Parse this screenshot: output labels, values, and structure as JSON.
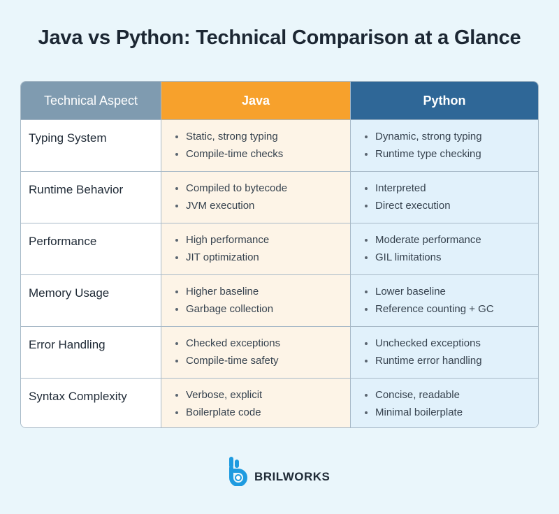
{
  "title": "Java vs Python: Technical Comparison at a Glance",
  "table": {
    "headers": [
      "Technical Aspect",
      "Java",
      "Python"
    ],
    "rows": [
      {
        "aspect": "Typing System",
        "java": [
          "Static, strong typing",
          "Compile-time checks"
        ],
        "python": [
          "Dynamic, strong typing",
          "Runtime type checking"
        ]
      },
      {
        "aspect": "Runtime Behavior",
        "java": [
          "Compiled to bytecode",
          "JVM execution"
        ],
        "python": [
          "Interpreted",
          "Direct execution"
        ]
      },
      {
        "aspect": "Performance",
        "java": [
          "High performance",
          "JIT optimization"
        ],
        "python": [
          "Moderate performance",
          "GIL limitations"
        ]
      },
      {
        "aspect": "Memory Usage",
        "java": [
          "Higher baseline",
          "Garbage collection"
        ],
        "python": [
          "Lower baseline",
          "Reference counting + GC"
        ]
      },
      {
        "aspect": "Error Handling",
        "java": [
          "Checked exceptions",
          "Compile-time safety"
        ],
        "python": [
          "Unchecked exceptions",
          "Runtime error handling"
        ]
      },
      {
        "aspect": "Syntax Complexity",
        "java": [
          "Verbose, explicit",
          "Boilerplate code"
        ],
        "python": [
          "Concise, readable",
          "Minimal boilerplate"
        ]
      }
    ]
  },
  "colors": {
    "aspect_header": "#7f9bb0",
    "java_header": "#f7a12c",
    "python_header": "#2f6797",
    "java_cell": "#fdf4e7",
    "python_cell": "#e1f1fb",
    "logo_blue": "#1e9be0"
  },
  "logo": {
    "icon": "brilworks-logo-icon",
    "text": "BRILWORKS"
  }
}
